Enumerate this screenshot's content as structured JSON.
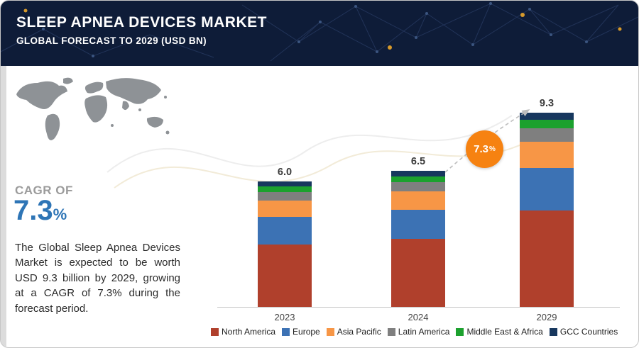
{
  "header": {
    "title": "SLEEP APNEA DEVICES MARKET",
    "subtitle": "GLOBAL FORECAST TO 2029 (USD BN)"
  },
  "sidebar": {
    "cagr_label": "CAGR OF",
    "cagr_value": "7.3",
    "cagr_pct": "%",
    "description": "The Global Sleep Apnea Devices Market is expected to be worth USD 9.3 billion by 2029, growing at a CAGR of 7.3% during the forecast period."
  },
  "chart_data": {
    "type": "bar",
    "stacked": true,
    "categories": [
      "2023",
      "2024",
      "2029"
    ],
    "totals": [
      6.0,
      6.5,
      9.3
    ],
    "total_labels": [
      "6.0",
      "6.5",
      "9.3"
    ],
    "series": [
      {
        "name": "North America",
        "color": "#b0402c",
        "values": [
          3.0,
          3.25,
          4.6
        ]
      },
      {
        "name": "Europe",
        "color": "#3c72b4",
        "values": [
          1.3,
          1.4,
          2.05
        ]
      },
      {
        "name": "Asia Pacific",
        "color": "#f79646",
        "values": [
          0.8,
          0.88,
          1.25
        ]
      },
      {
        "name": "Latin America",
        "color": "#7f7f7f",
        "values": [
          0.4,
          0.45,
          0.65
        ]
      },
      {
        "name": "Middle East & Africa",
        "color": "#1ca12e",
        "values": [
          0.25,
          0.26,
          0.4
        ]
      },
      {
        "name": "GCC Countries",
        "color": "#17375e",
        "values": [
          0.25,
          0.26,
          0.35
        ]
      }
    ],
    "badge_value": "7.3",
    "badge_pct": "%",
    "unit": "USD BN",
    "y_axis_visible": false,
    "legend_position": "bottom"
  }
}
